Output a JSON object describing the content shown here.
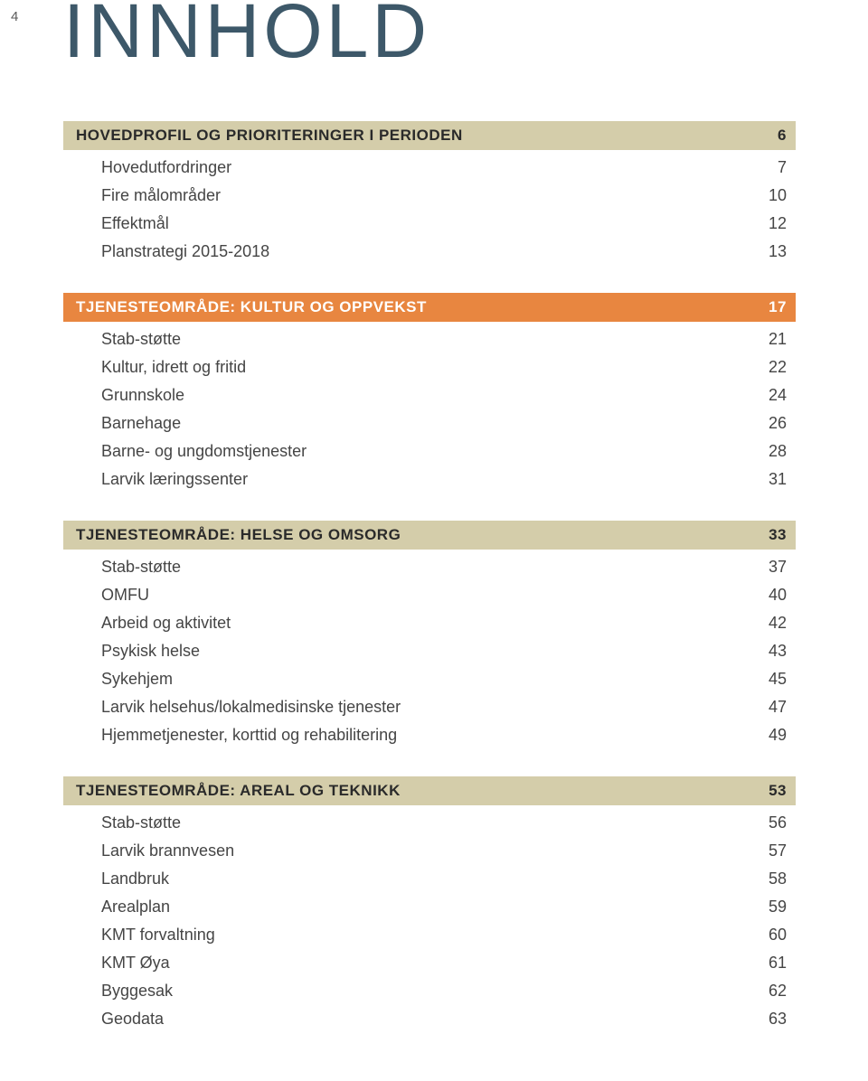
{
  "page_number": "4",
  "main_title": "INNHOLD",
  "colors": {
    "title": "#3d5869",
    "beige_bar_bg": "#d4cdaa",
    "beige_bar_text": "#2a2a2a",
    "orange_bar_bg": "#e88640",
    "orange_bar_text": "#ffffff",
    "entry_text": "#454545",
    "background": "#ffffff"
  },
  "sections": [
    {
      "heading": "HOVEDPROFIL OG PRIORITERINGER I PERIODEN",
      "page": "6",
      "style": "beige",
      "entries": [
        {
          "label": "Hovedutfordringer",
          "page": "7"
        },
        {
          "label": "Fire målområder",
          "page": "10"
        },
        {
          "label": "Effektmål",
          "page": "12"
        },
        {
          "label": "Planstrategi 2015-2018",
          "page": "13"
        }
      ]
    },
    {
      "heading": "TJENESTEOMRÅDE: KULTUR OG OPPVEKST",
      "page": "17",
      "style": "orange",
      "entries": [
        {
          "label": "Stab-støtte",
          "page": "21"
        },
        {
          "label": "Kultur, idrett og fritid",
          "page": "22"
        },
        {
          "label": "Grunnskole",
          "page": "24"
        },
        {
          "label": "Barnehage",
          "page": "26"
        },
        {
          "label": "Barne- og ungdomstjenester",
          "page": "28"
        },
        {
          "label": "Larvik læringssenter",
          "page": "31"
        }
      ]
    },
    {
      "heading": "TJENESTEOMRÅDE: HELSE OG OMSORG",
      "page": "33",
      "style": "beige",
      "entries": [
        {
          "label": "Stab-støtte",
          "page": "37"
        },
        {
          "label": "OMFU",
          "page": "40"
        },
        {
          "label": "Arbeid og aktivitet",
          "page": "42"
        },
        {
          "label": "Psykisk helse",
          "page": "43"
        },
        {
          "label": "Sykehjem",
          "page": "45"
        },
        {
          "label": "Larvik helsehus/lokalmedisinske tjenester",
          "page": "47"
        },
        {
          "label": "Hjemmetjenester, korttid og rehabilitering",
          "page": "49"
        }
      ]
    },
    {
      "heading": "TJENESTEOMRÅDE: AREAL OG TEKNIKK",
      "page": "53",
      "style": "beige",
      "entries": [
        {
          "label": "Stab-støtte",
          "page": "56"
        },
        {
          "label": "Larvik brannvesen",
          "page": "57"
        },
        {
          "label": "Landbruk",
          "page": "58"
        },
        {
          "label": "Arealplan",
          "page": "59"
        },
        {
          "label": "KMT forvaltning",
          "page": "60"
        },
        {
          "label": "KMT Øya",
          "page": "61"
        },
        {
          "label": "Byggesak",
          "page": "62"
        },
        {
          "label": "Geodata",
          "page": "63"
        }
      ]
    }
  ]
}
